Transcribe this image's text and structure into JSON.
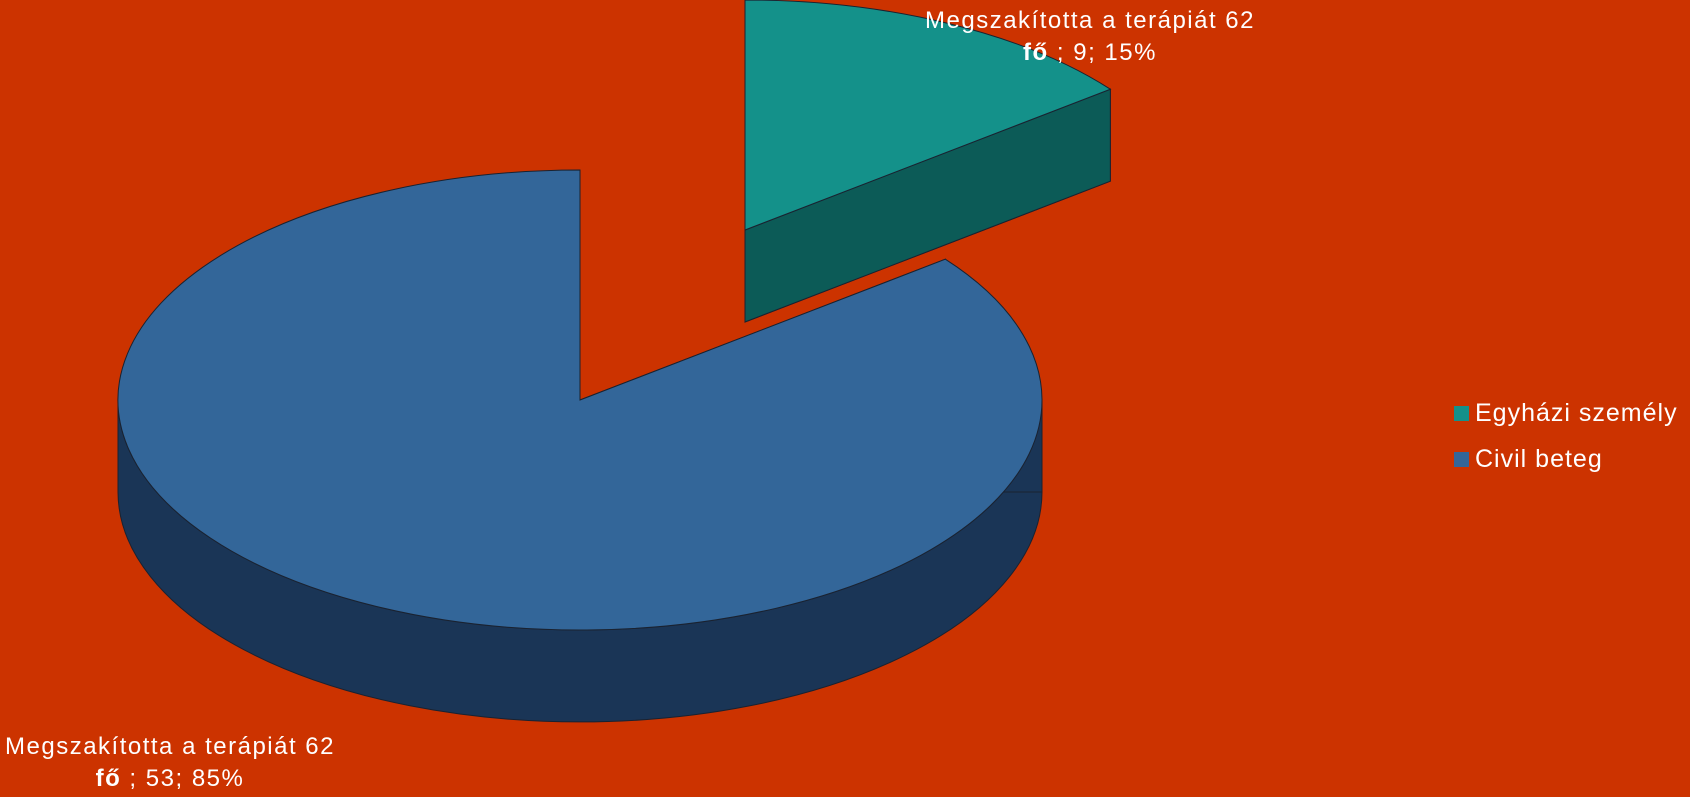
{
  "chart_data": {
    "type": "pie",
    "style": "3d-exploded",
    "background": "#cc3300",
    "slices": [
      {
        "category": "Egyházi személy",
        "value": 9,
        "percent": "15%",
        "label_prefix": "Megszakította a terápiát 62",
        "label_unit": "fő",
        "label_sep": " ; ",
        "value_text": "9",
        "pct_sep": "; ",
        "color": "#14918a",
        "side_color": "#0c5b57"
      },
      {
        "category": "Civil beteg",
        "value": 53,
        "percent": "85%",
        "label_prefix": "Megszakította a terápiát 62",
        "label_unit": "fő",
        "label_sep": " ; ",
        "value_text": "53",
        "pct_sep": "; ",
        "color": "#336699",
        "side_color": "#1a3556"
      }
    ],
    "legend": {
      "position": "right",
      "items": [
        "Egyházi személy",
        "Civil beteg"
      ]
    }
  }
}
